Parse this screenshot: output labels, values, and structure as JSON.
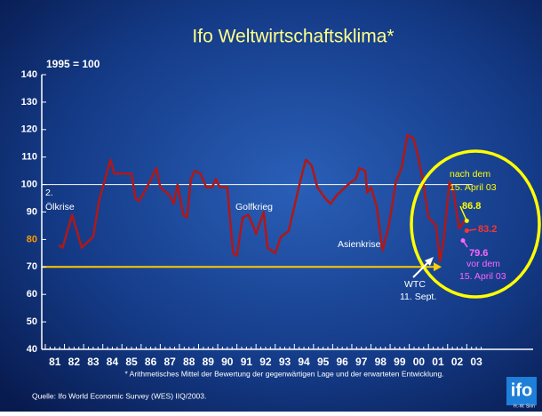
{
  "chart_data": {
    "type": "line",
    "title": "Ifo Weltwirtschaftsklima*",
    "subtitle": "1995 = 100",
    "footnote": "* Arithmetisches Mittel der Bewertung der gegenwärtigen Lage und der erwarteten Entwicklung.",
    "source": "Quelle: Ifo World Economic Survey (WES) IIQ/2003.",
    "logo": "ifo",
    "author": "H.-W. Sinn",
    "xlim": [
      1981,
      2006
    ],
    "xticks": [
      {
        "value": 1981,
        "label": "81"
      },
      {
        "value": 1982,
        "label": "82"
      },
      {
        "value": 1983,
        "label": "83"
      },
      {
        "value": 1984,
        "label": "84"
      },
      {
        "value": 1985,
        "label": "85"
      },
      {
        "value": 1986,
        "label": "86"
      },
      {
        "value": 1987,
        "label": "87"
      },
      {
        "value": 1988,
        "label": "88"
      },
      {
        "value": 1989,
        "label": "89"
      },
      {
        "value": 1990,
        "label": "90"
      },
      {
        "value": 1991,
        "label": "91"
      },
      {
        "value": 1992,
        "label": "92"
      },
      {
        "value": 1993,
        "label": "93"
      },
      {
        "value": 1994,
        "label": "94"
      },
      {
        "value": 1995,
        "label": "95"
      },
      {
        "value": 1996,
        "label": "96"
      },
      {
        "value": 1997,
        "label": "97"
      },
      {
        "value": 1998,
        "label": "98"
      },
      {
        "value": 1999,
        "label": "99"
      },
      {
        "value": 2000,
        "label": "00"
      },
      {
        "value": 2001,
        "label": "01"
      },
      {
        "value": 2002,
        "label": "02"
      },
      {
        "value": 2003,
        "label": "03"
      }
    ],
    "ylim": [
      40,
      140
    ],
    "yticks": [
      40,
      50,
      60,
      70,
      80,
      90,
      100,
      110,
      120,
      130,
      140
    ],
    "ytick_colors": [
      "#ffffff",
      "#ffffff",
      "#ffffff",
      "#ffffff",
      "#ff9900",
      "#ffffff",
      "#ffffff",
      "#ffffff",
      "#ffffff",
      "#ffffff",
      "#ffffff"
    ],
    "reference_lines": [
      {
        "value": 100,
        "color": "#ffffff"
      },
      {
        "value": 70,
        "color": "#ffcc00"
      }
    ],
    "series": [
      {
        "name": "Ifo Weltwirtschaftsklima",
        "color": "#b01818",
        "x": [
          1981.7,
          1981.9,
          1982.4,
          1982.9,
          1983.5,
          1983.8,
          1984.4,
          1984.6,
          1984.9,
          1985.5,
          1985.7,
          1985.9,
          1986.3,
          1986.8,
          1987.0,
          1987.5,
          1987.7,
          1987.9,
          1988.2,
          1988.4,
          1988.6,
          1988.8,
          1989.1,
          1989.4,
          1989.7,
          1989.9,
          1990.1,
          1990.5,
          1990.8,
          1991.0,
          1991.3,
          1991.6,
          1991.9,
          1992.0,
          1992.4,
          1992.6,
          1993.0,
          1993.3,
          1993.7,
          1994.0,
          1994.3,
          1994.6,
          1994.9,
          1995.2,
          1995.6,
          1995.9,
          1996.2,
          1996.5,
          1996.8,
          1997.2,
          1997.4,
          1997.7,
          1997.8,
          1998.0,
          1998.3,
          1998.6,
          1998.9,
          1999.1,
          1999.3,
          1999.6,
          1999.9,
          2000.2,
          2000.4,
          2000.7,
          2001.0,
          2001.4,
          2001.6,
          2001.8,
          2002.1,
          2002.3,
          2002.6,
          2002.9
        ],
        "values": [
          78,
          77,
          89,
          77,
          81,
          94,
          109,
          104,
          104,
          104,
          95,
          94,
          99,
          106,
          99,
          96,
          93,
          100,
          89,
          88,
          102,
          105,
          104,
          99,
          99,
          102,
          99,
          99,
          75,
          74,
          88,
          89,
          84,
          82,
          90,
          77,
          75,
          81,
          83,
          92,
          101,
          109,
          107,
          99,
          95,
          93,
          96,
          98,
          100,
          102,
          106,
          105,
          97,
          99,
          92,
          76,
          84,
          92,
          101,
          106,
          118,
          117,
          112,
          102,
          88,
          85,
          72,
          80,
          101,
          98,
          84,
          87
        ]
      }
    ],
    "points": [
      {
        "x": 2003.0,
        "value": 86.8,
        "label": "86.8",
        "color": "#ffff00"
      },
      {
        "x": 2003.0,
        "value": 83.2,
        "label": "83.2",
        "color": "#ff3333"
      },
      {
        "x": 2002.8,
        "value": 79.6,
        "label": "79.6",
        "color": "#ff66ff"
      }
    ],
    "annotations": [
      {
        "text": "2.",
        "color": "#ffffff"
      },
      {
        "text": "Ölkrise",
        "color": "#ffffff"
      },
      {
        "text": "Golfkrieg",
        "color": "#ffffff"
      },
      {
        "text": "Asienkrise",
        "color": "#ffffff"
      },
      {
        "text": "WTC",
        "color": "#ffffff"
      },
      {
        "text": "11. Sept.",
        "color": "#ffffff"
      },
      {
        "text": "nach dem",
        "color": "#ffff00"
      },
      {
        "text": "15. April 03",
        "color": "#ffff00"
      },
      {
        "text": "vor dem",
        "color": "#ff66ff"
      },
      {
        "text": "15. April 03",
        "color": "#ff66ff"
      }
    ]
  }
}
